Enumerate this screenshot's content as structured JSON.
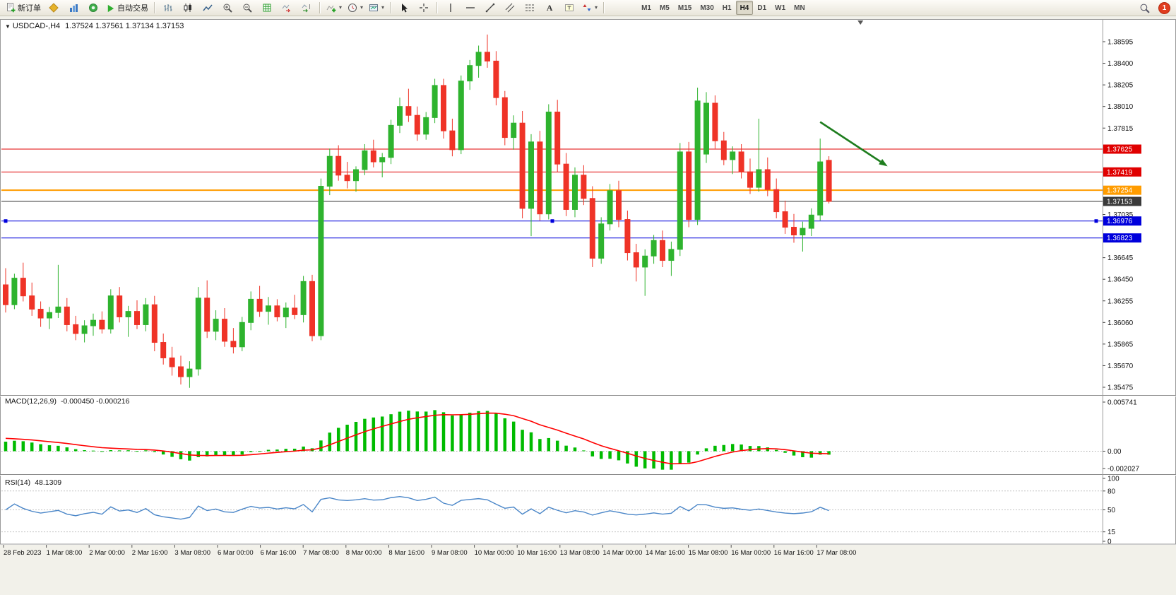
{
  "toolbar": {
    "new_order_label": "新订单",
    "auto_trading_label": "自动交易",
    "timeframes": [
      "M1",
      "M5",
      "M15",
      "M30",
      "H1",
      "H4",
      "D1",
      "W1",
      "MN"
    ],
    "active_timeframe": "H4",
    "notification_count": "1"
  },
  "icons": {
    "caret": "▾",
    "text_a": "A"
  },
  "chart": {
    "symbol_label": "USDCAD-,H4",
    "ohlc_label": "1.37524 1.37561 1.37134 1.37153",
    "macd_title": "MACD(12,26,9)",
    "macd_values": "-0.000450 -0.000216",
    "rsi_title": "RSI(14)",
    "rsi_value": "48.1309"
  },
  "chart_data": {
    "type": "candlestick",
    "symbol": "USDCAD-",
    "timeframe": "H4",
    "current_ohlc": {
      "open": 1.37524,
      "high": 1.37561,
      "low": 1.37134,
      "close": 1.37153
    },
    "colors": {
      "bull": "#2eb32e",
      "bear": "#ef3327",
      "macd_hist": "#00bb00",
      "macd_signal": "#ff0000",
      "rsi_line": "#4a86c8"
    },
    "price_axis": {
      "min": 1.35475,
      "max": 1.38595,
      "plain_ticks": [
        "1.38595",
        "1.38400",
        "1.38205",
        "1.38010",
        "1.37815",
        "1.37035",
        "1.36645",
        "1.36450",
        "1.36255",
        "1.36060",
        "1.35865",
        "1.35670",
        "1.35475"
      ]
    },
    "levels": [
      {
        "price": 1.37625,
        "color": "#e00000",
        "badge": "1.37625",
        "width": 1,
        "role": "resistance"
      },
      {
        "price": 1.37419,
        "color": "#e00000",
        "badge": "1.37419",
        "width": 1,
        "role": "resistance"
      },
      {
        "price": 1.37254,
        "color": "#ff9c00",
        "badge": "1.37254",
        "width": 2,
        "role": "pivot"
      },
      {
        "price": 1.37153,
        "color": "#3a3a3a",
        "badge": "1.37153",
        "width": 1,
        "role": "bid"
      },
      {
        "price": 1.36976,
        "color": "#0000dc",
        "badge": "1.36976",
        "width": 1,
        "role": "support",
        "selected": true
      },
      {
        "price": 1.36823,
        "color": "#0000dc",
        "badge": "1.36823",
        "width": 1,
        "role": "support"
      }
    ],
    "candles": [
      [
        1.364,
        1.3655,
        1.3615,
        1.3622
      ],
      [
        1.3622,
        1.365,
        1.3618,
        1.3646
      ],
      [
        1.3646,
        1.366,
        1.3625,
        1.363
      ],
      [
        1.363,
        1.3642,
        1.3612,
        1.3618
      ],
      [
        1.3618,
        1.3625,
        1.3602,
        1.361
      ],
      [
        1.361,
        1.362,
        1.36,
        1.3615
      ],
      [
        1.3615,
        1.3658,
        1.361,
        1.362
      ],
      [
        1.362,
        1.3628,
        1.3598,
        1.3604
      ],
      [
        1.3604,
        1.3612,
        1.359,
        1.3596
      ],
      [
        1.3596,
        1.3608,
        1.3588,
        1.3603
      ],
      [
        1.3603,
        1.3614,
        1.3594,
        1.3608
      ],
      [
        1.3608,
        1.3616,
        1.3596,
        1.36
      ],
      [
        1.36,
        1.3636,
        1.3596,
        1.363
      ],
      [
        1.363,
        1.3638,
        1.3606,
        1.3611
      ],
      [
        1.3611,
        1.3621,
        1.3593,
        1.3616
      ],
      [
        1.3616,
        1.3626,
        1.36,
        1.3604
      ],
      [
        1.3604,
        1.3628,
        1.3598,
        1.3622
      ],
      [
        1.3622,
        1.363,
        1.358,
        1.3588
      ],
      [
        1.3588,
        1.3596,
        1.3568,
        1.3574
      ],
      [
        1.3574,
        1.3584,
        1.3558,
        1.3566
      ],
      [
        1.3566,
        1.3576,
        1.355,
        1.3557
      ],
      [
        1.3557,
        1.3571,
        1.3547,
        1.3564
      ],
      [
        1.3564,
        1.3638,
        1.3558,
        1.3628
      ],
      [
        1.3628,
        1.3644,
        1.3592,
        1.3598
      ],
      [
        1.3598,
        1.3617,
        1.359,
        1.3609
      ],
      [
        1.3609,
        1.3619,
        1.3584,
        1.3589
      ],
      [
        1.3589,
        1.3601,
        1.3578,
        1.3584
      ],
      [
        1.3584,
        1.3611,
        1.358,
        1.3606
      ],
      [
        1.3606,
        1.3634,
        1.3599,
        1.3627
      ],
      [
        1.3627,
        1.3639,
        1.3611,
        1.3616
      ],
      [
        1.3616,
        1.3629,
        1.3604,
        1.3621
      ],
      [
        1.3621,
        1.3627,
        1.3607,
        1.3611
      ],
      [
        1.3611,
        1.3624,
        1.3601,
        1.3619
      ],
      [
        1.3619,
        1.3631,
        1.3609,
        1.3613
      ],
      [
        1.3613,
        1.3648,
        1.3606,
        1.3643
      ],
      [
        1.3643,
        1.3649,
        1.3589,
        1.3594
      ],
      [
        1.3594,
        1.3736,
        1.359,
        1.3729
      ],
      [
        1.3729,
        1.3763,
        1.3721,
        1.3756
      ],
      [
        1.3756,
        1.3766,
        1.3734,
        1.3739
      ],
      [
        1.3739,
        1.3751,
        1.3727,
        1.3734
      ],
      [
        1.3734,
        1.3747,
        1.3724,
        1.3744
      ],
      [
        1.3744,
        1.3767,
        1.3739,
        1.3761
      ],
      [
        1.3761,
        1.3771,
        1.3746,
        1.3751
      ],
      [
        1.3751,
        1.3759,
        1.3737,
        1.3755
      ],
      [
        1.3755,
        1.3789,
        1.3749,
        1.3784
      ],
      [
        1.3784,
        1.3809,
        1.3777,
        1.3801
      ],
      [
        1.3801,
        1.3817,
        1.3787,
        1.3793
      ],
      [
        1.3793,
        1.3801,
        1.377,
        1.3776
      ],
      [
        1.3776,
        1.3796,
        1.3771,
        1.3791
      ],
      [
        1.3791,
        1.3826,
        1.3786,
        1.382
      ],
      [
        1.382,
        1.3826,
        1.3772,
        1.3779
      ],
      [
        1.3779,
        1.379,
        1.3756,
        1.3762
      ],
      [
        1.3762,
        1.3829,
        1.3758,
        1.3824
      ],
      [
        1.3824,
        1.3843,
        1.3816,
        1.3838
      ],
      [
        1.3838,
        1.3856,
        1.3827,
        1.385
      ],
      [
        1.385,
        1.3866,
        1.3836,
        1.3842
      ],
      [
        1.3842,
        1.3851,
        1.3802,
        1.3809
      ],
      [
        1.3809,
        1.3815,
        1.3766,
        1.3773
      ],
      [
        1.3773,
        1.3793,
        1.3762,
        1.3786
      ],
      [
        1.3786,
        1.3797,
        1.37,
        1.3709
      ],
      [
        1.3709,
        1.3776,
        1.3684,
        1.3769
      ],
      [
        1.3769,
        1.3779,
        1.3698,
        1.3704
      ],
      [
        1.3704,
        1.3803,
        1.3699,
        1.3796
      ],
      [
        1.3796,
        1.3807,
        1.3742,
        1.3749
      ],
      [
        1.3749,
        1.3759,
        1.3702,
        1.3708
      ],
      [
        1.3708,
        1.3746,
        1.3701,
        1.3739
      ],
      [
        1.3739,
        1.3748,
        1.3712,
        1.3718
      ],
      [
        1.3718,
        1.3729,
        1.3656,
        1.3664
      ],
      [
        1.3664,
        1.3701,
        1.3659,
        1.3695
      ],
      [
        1.3695,
        1.3731,
        1.3689,
        1.3725
      ],
      [
        1.3725,
        1.3734,
        1.3692,
        1.3699
      ],
      [
        1.3699,
        1.3707,
        1.3662,
        1.3669
      ],
      [
        1.3669,
        1.3677,
        1.3643,
        1.3656
      ],
      [
        1.3656,
        1.3672,
        1.363,
        1.3666
      ],
      [
        1.3666,
        1.3685,
        1.3659,
        1.368
      ],
      [
        1.368,
        1.3689,
        1.3656,
        1.3662
      ],
      [
        1.3662,
        1.3679,
        1.3648,
        1.3672
      ],
      [
        1.3672,
        1.3768,
        1.3666,
        1.376
      ],
      [
        1.376,
        1.3769,
        1.3692,
        1.3699
      ],
      [
        1.3699,
        1.3818,
        1.3694,
        1.3806
      ],
      [
        1.3758,
        1.3814,
        1.375,
        1.3804
      ],
      [
        1.3804,
        1.3811,
        1.3763,
        1.377
      ],
      [
        1.377,
        1.3778,
        1.3748,
        1.3753
      ],
      [
        1.3753,
        1.3765,
        1.374,
        1.376
      ],
      [
        1.376,
        1.3767,
        1.3736,
        1.3742
      ],
      [
        1.3742,
        1.3754,
        1.3722,
        1.3728
      ],
      [
        1.3728,
        1.379,
        1.3724,
        1.3744
      ],
      [
        1.3744,
        1.3755,
        1.372,
        1.3726
      ],
      [
        1.3726,
        1.3736,
        1.37,
        1.3706
      ],
      [
        1.3706,
        1.3716,
        1.3686,
        1.3692
      ],
      [
        1.3692,
        1.3704,
        1.3678,
        1.3685
      ],
      [
        1.3685,
        1.3697,
        1.367,
        1.3691
      ],
      [
        1.3691,
        1.3709,
        1.3684,
        1.3703
      ],
      [
        1.3703,
        1.3772,
        1.3698,
        1.3751
      ],
      [
        1.37524,
        1.37561,
        1.37134,
        1.37153
      ]
    ],
    "time_labels": [
      "28 Feb 2023",
      "1 Mar 08:00",
      "2 Mar 00:00",
      "2 Mar 16:00",
      "3 Mar 08:00",
      "6 Mar 00:00",
      "6 Mar 16:00",
      "7 Mar 08:00",
      "8 Mar 00:00",
      "8 Mar 16:00",
      "9 Mar 08:00",
      "10 Mar 00:00",
      "10 Mar 16:00",
      "13 Mar 08:00",
      "14 Mar 00:00",
      "14 Mar 16:00",
      "15 Mar 08:00",
      "16 Mar 00:00",
      "16 Mar 16:00",
      "17 Mar 08:00"
    ],
    "macd": {
      "params": "12,26,9",
      "main_value": -0.00045,
      "signal_value": -0.000216,
      "scale": {
        "max": 0.005741,
        "min": -0.002027
      },
      "ticks": [
        "0.005741",
        "0.00",
        "-0.002027"
      ],
      "tick_values": [
        0.005741,
        0,
        -0.002027
      ]
    },
    "rsi": {
      "period": 14,
      "current": 48.1309,
      "ticks": [
        "100",
        "80",
        "50",
        "15",
        "0"
      ],
      "tick_values": [
        100,
        80,
        50,
        15,
        0
      ],
      "levels": [
        80,
        50,
        15
      ]
    },
    "annotation_arrow": {
      "from_index": 93,
      "from_price": 1.3787,
      "to_index": 100.7,
      "to_price": 1.3747,
      "color": "#1e7d1e"
    },
    "shift_marker_index": 97.6
  }
}
